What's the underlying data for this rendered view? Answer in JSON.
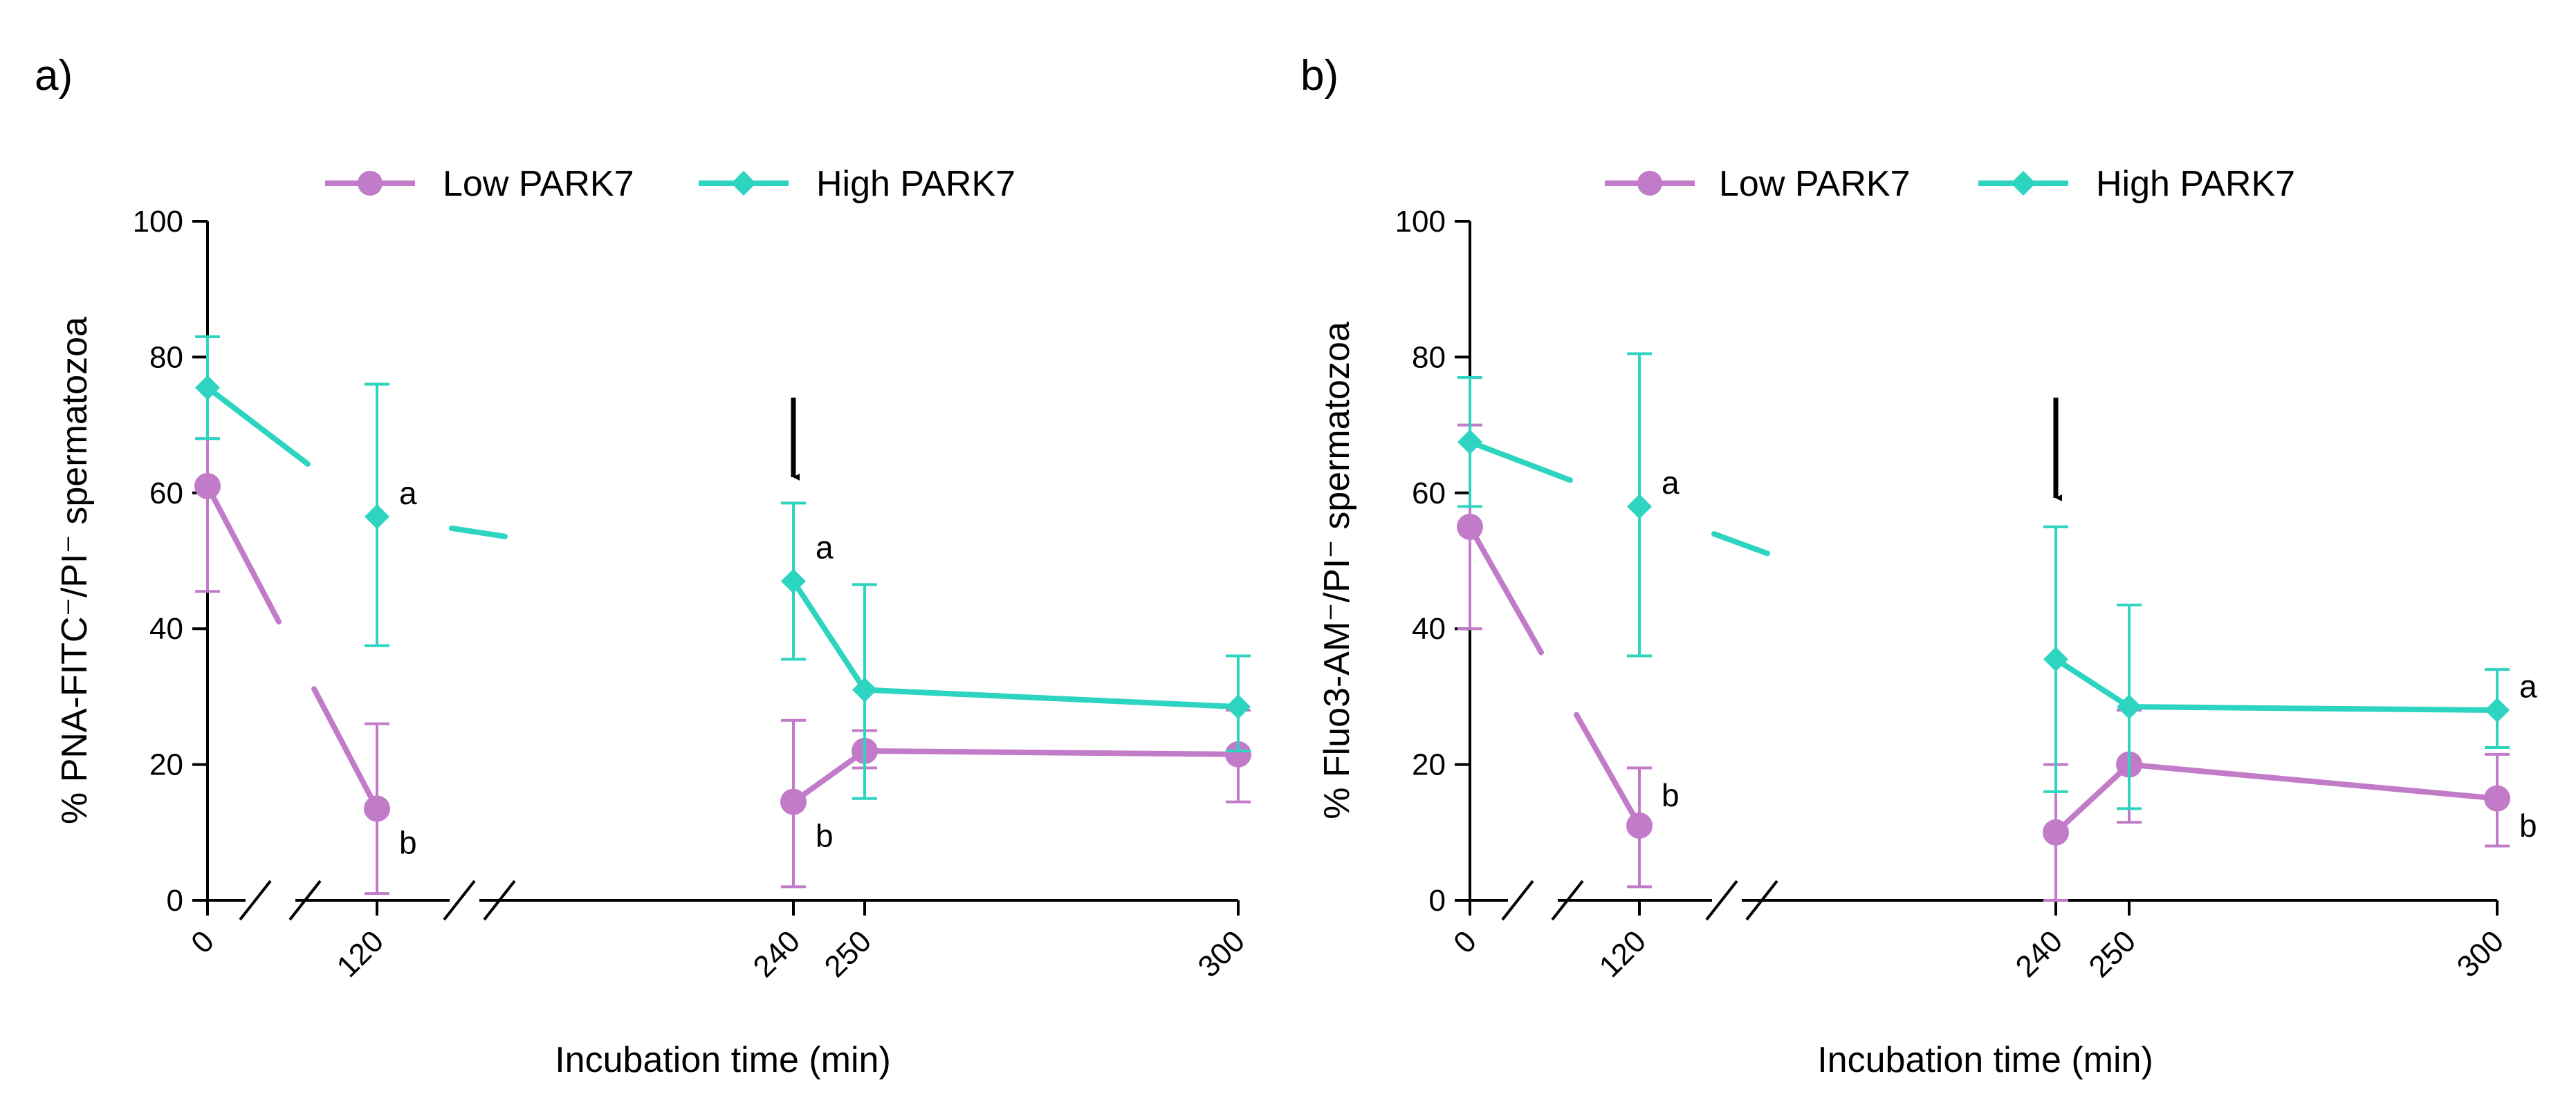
{
  "chart_data": [
    {
      "type": "line",
      "panel_label": "a)",
      "xlabel": "Incubation time (min)",
      "ylabel": "% PNA-FITC⁻/PI⁻ spermatozoa",
      "ylim": [
        0,
        100
      ],
      "yticks": [
        0,
        20,
        40,
        60,
        80,
        100
      ],
      "x": [
        0,
        120,
        240,
        250,
        300
      ],
      "x_tick_labels": [
        "0",
        "120",
        "240",
        "250",
        "300"
      ],
      "x_axis_breaks": true,
      "arrow_at_x": 240,
      "series": [
        {
          "name": "Low PARK7",
          "color": "#c27bc8",
          "marker": "circle",
          "values": [
            61,
            13.5,
            14.5,
            22,
            21.5
          ],
          "err_low": [
            45.5,
            1,
            2,
            19.5,
            14.5
          ],
          "err_high": [
            68,
            26,
            26.5,
            25,
            28
          ]
        },
        {
          "name": "High PARK7",
          "color": "#2dd4c0",
          "marker": "diamond",
          "values": [
            75.5,
            56.5,
            47,
            31,
            28.5
          ],
          "err_low": [
            68,
            37.5,
            35.5,
            15,
            22
          ],
          "err_high": [
            83,
            76,
            58.5,
            46.5,
            36
          ]
        }
      ],
      "annotations": [
        {
          "x": 120,
          "y": 60,
          "text": "a"
        },
        {
          "x": 120,
          "y": 8.5,
          "text": "b"
        },
        {
          "x": 240,
          "y": 52,
          "text": "a"
        },
        {
          "x": 240,
          "y": 9.5,
          "text": "b"
        }
      ]
    },
    {
      "type": "line",
      "panel_label": "b)",
      "xlabel": "Incubation time (min)",
      "ylabel": "% Fluo3-AM⁻/PI⁻ spermatozoa",
      "ylim": [
        0,
        100
      ],
      "yticks": [
        0,
        20,
        40,
        60,
        80,
        100
      ],
      "x": [
        0,
        120,
        240,
        250,
        300
      ],
      "x_tick_labels": [
        "0",
        "120",
        "240",
        "250",
        "300"
      ],
      "x_axis_breaks": true,
      "arrow_at_x": 240,
      "series": [
        {
          "name": "Low PARK7",
          "color": "#c27bc8",
          "marker": "circle",
          "values": [
            55,
            11,
            10,
            20,
            15
          ],
          "err_low": [
            40,
            2,
            0,
            11.5,
            8
          ],
          "err_high": [
            70,
            19.5,
            20,
            28,
            21.5
          ]
        },
        {
          "name": "High PARK7",
          "color": "#2dd4c0",
          "marker": "diamond",
          "values": [
            67.5,
            58,
            35.5,
            28.5,
            28
          ],
          "err_low": [
            58,
            36,
            16,
            13.5,
            22.5
          ],
          "err_high": [
            77,
            80.5,
            55,
            43.5,
            34
          ]
        }
      ],
      "annotations": [
        {
          "x": 120,
          "y": 61.5,
          "text": "a"
        },
        {
          "x": 120,
          "y": 15.5,
          "text": "b"
        },
        {
          "x": 300,
          "y": 31.5,
          "text": "a"
        },
        {
          "x": 300,
          "y": 11,
          "text": "b"
        }
      ]
    }
  ]
}
